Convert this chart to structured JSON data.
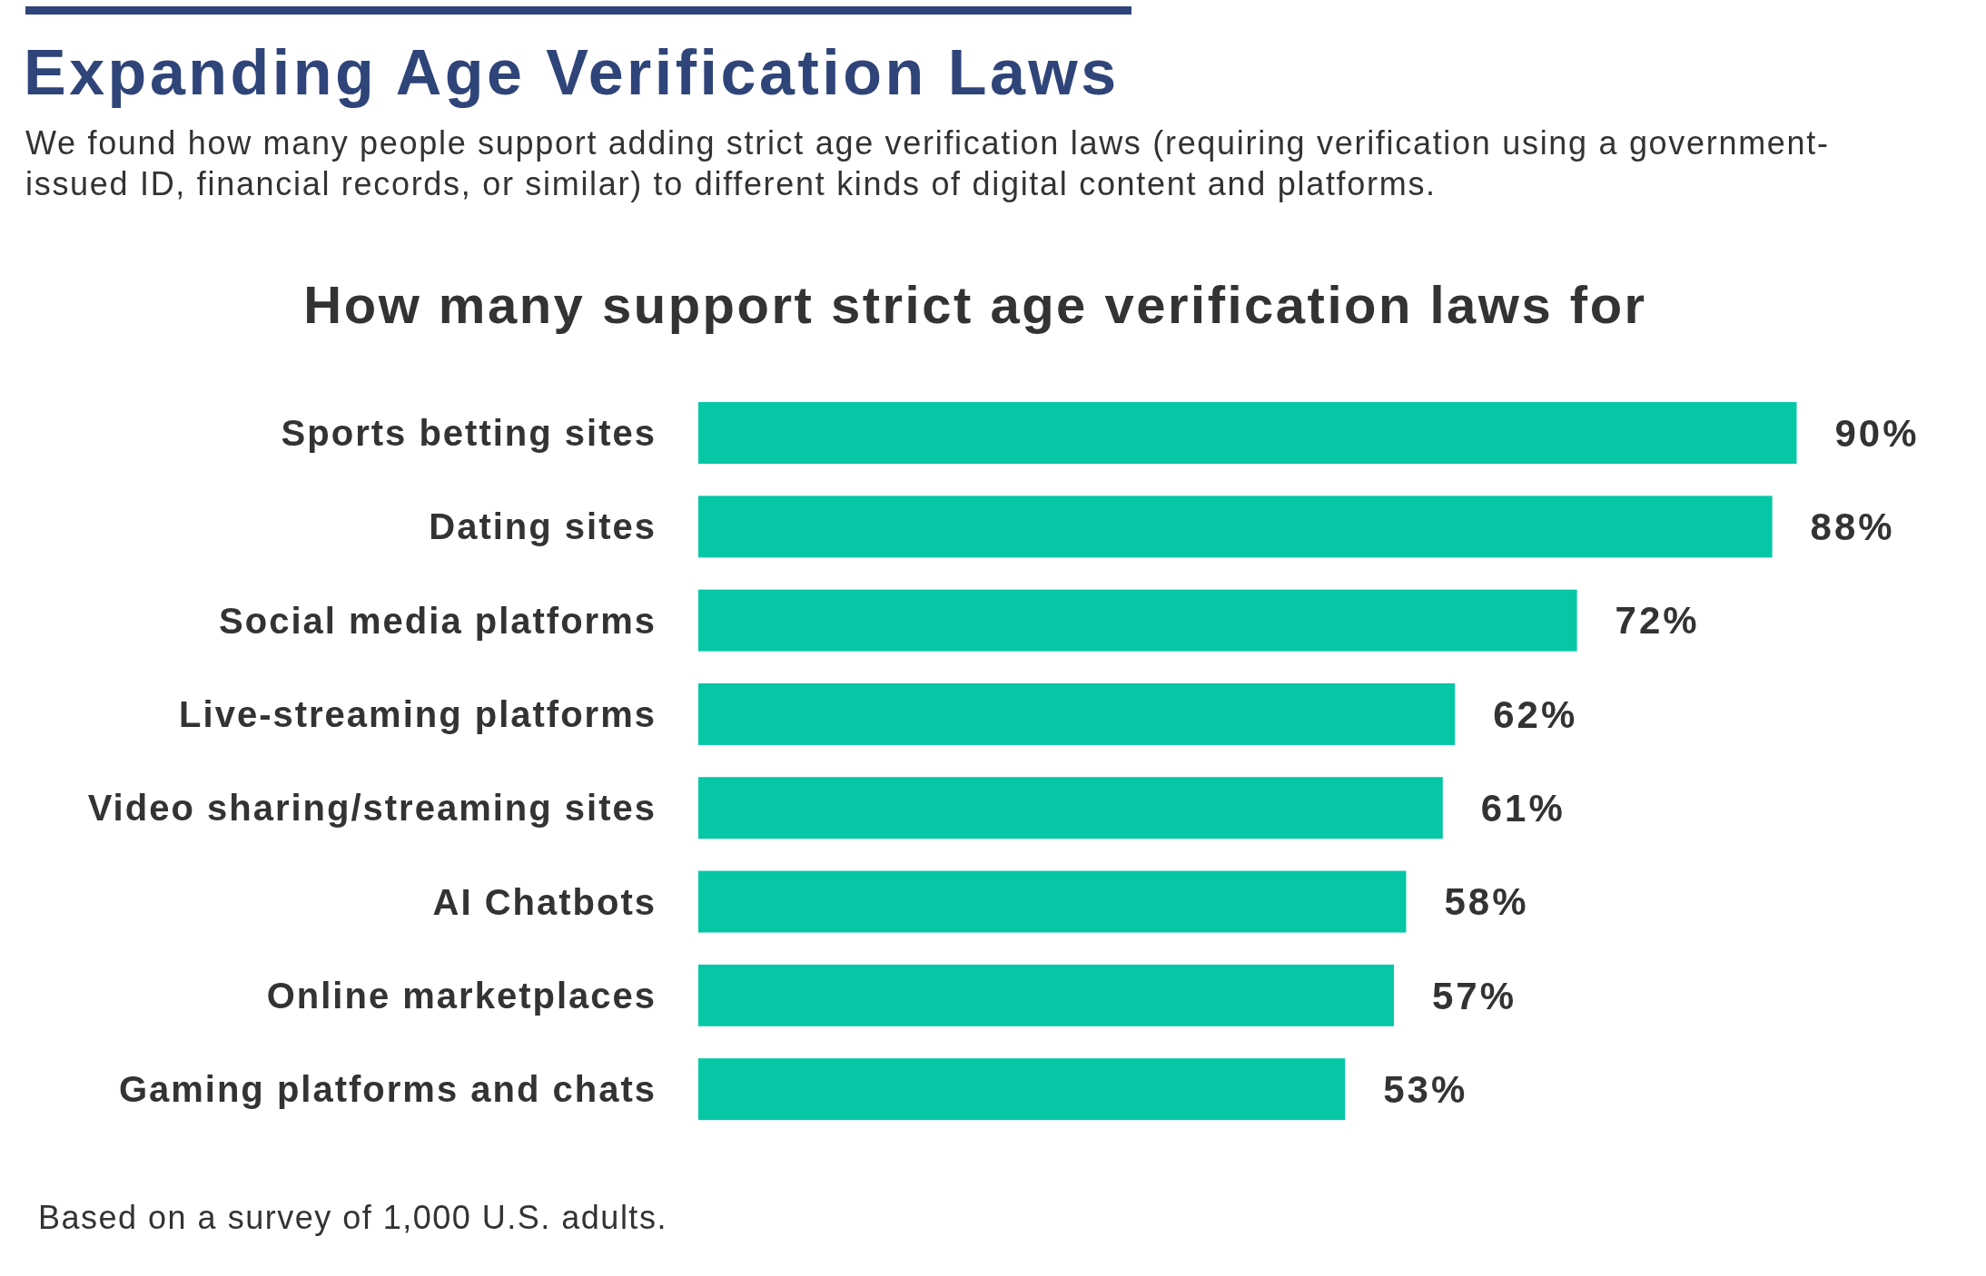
{
  "chart_data": {
    "type": "bar",
    "orientation": "horizontal",
    "title": "Expanding Age Verification Laws",
    "subtitle": "We found how many people support adding strict age verification laws (requiring verification using a government-issued ID, financial records, or similar) to different kinds of digital content and platforms.",
    "annotations": [
      "How many support strict age verification laws for",
      "Based on a survey of 1,000 U.S. adults."
    ],
    "categories": [
      "Sports betting sites",
      "Dating sites",
      "Social media platforms",
      "Live-streaming platforms",
      "Video sharing/streaming sites",
      "AI Chatbots",
      "Online marketplaces",
      "Gaming platforms and chats"
    ],
    "values": [
      90,
      88,
      72,
      62,
      61,
      58,
      57,
      53
    ],
    "value_labels": [
      "90%",
      "88%",
      "72%",
      "62%",
      "61%",
      "58%",
      "57%",
      "53%"
    ],
    "color": "#05c7a6"
  }
}
